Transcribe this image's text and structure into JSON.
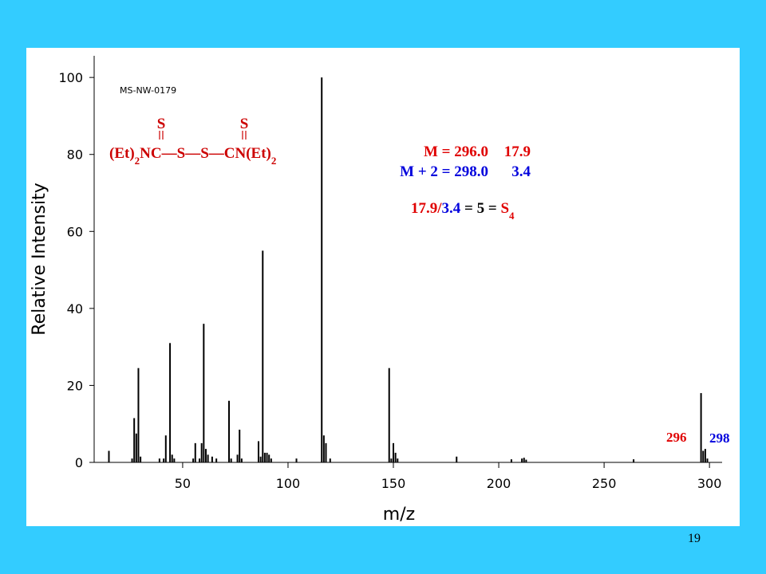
{
  "chart_data": {
    "type": "bar",
    "id_label": "MS-NW-0179",
    "x_label": "m/z",
    "y_label": "Relative Intensity",
    "x": [
      15,
      26,
      27,
      28,
      29,
      30,
      39,
      41,
      42,
      44,
      45,
      46,
      55,
      56,
      58,
      59,
      60,
      61,
      62,
      64,
      66,
      72,
      73,
      76,
      77,
      78,
      86,
      87,
      88,
      89,
      90,
      91,
      92,
      104,
      116,
      117,
      118,
      120,
      148,
      149,
      150,
      151,
      152,
      180,
      206,
      211,
      212,
      213,
      264,
      296,
      297,
      298,
      299
    ],
    "values": [
      3,
      1,
      11.5,
      7.5,
      24.5,
      1.5,
      1,
      1,
      7,
      31,
      2,
      1,
      1,
      5,
      1,
      5,
      36,
      3.5,
      2,
      1.5,
      1,
      16,
      1,
      2,
      8.5,
      1,
      5.5,
      1.5,
      55,
      2.5,
      2.5,
      2,
      1,
      1,
      100,
      7,
      5,
      1,
      24.5,
      1,
      5,
      2.5,
      1,
      1.5,
      0.8,
      1,
      1.2,
      0.7,
      0.8,
      18,
      3,
      3.5,
      1
    ],
    "color": "#000000",
    "xlim": [
      8,
      306
    ],
    "xticks": [
      50,
      100,
      150,
      200,
      250,
      300
    ],
    "ylim": [
      0,
      105
    ],
    "yticks": [
      0,
      20,
      40,
      60,
      80,
      100
    ],
    "structure": {
      "top": [
        "S",
        "S"
      ],
      "formula": [
        "(Et)",
        "2",
        "NC",
        "—",
        "S",
        "—",
        "S",
        "—",
        "CN(Et)",
        "2"
      ],
      "color": "#cc0000"
    },
    "annotations": [
      {
        "label": "M = 296.0",
        "value": "17.9",
        "color": "#e00000"
      },
      {
        "label": "M + 2 = 298.0",
        "value": "3.4",
        "color": "#0000dd"
      }
    ],
    "ratio": [
      {
        "text": "17.9",
        "color": "#e00000"
      },
      {
        "text": "/",
        "color": "#e00000"
      },
      {
        "text": "3.4",
        "color": "#0000dd"
      },
      {
        "text": " = 5 = ",
        "color": "#000000"
      },
      {
        "text": "S",
        "color": "#e00000"
      },
      {
        "text": "4",
        "color": "#e00000"
      }
    ],
    "peak_labels": [
      {
        "text": "296",
        "color": "#e00000"
      },
      {
        "text": "298",
        "color": "#0000dd"
      }
    ]
  },
  "page_number": "19"
}
